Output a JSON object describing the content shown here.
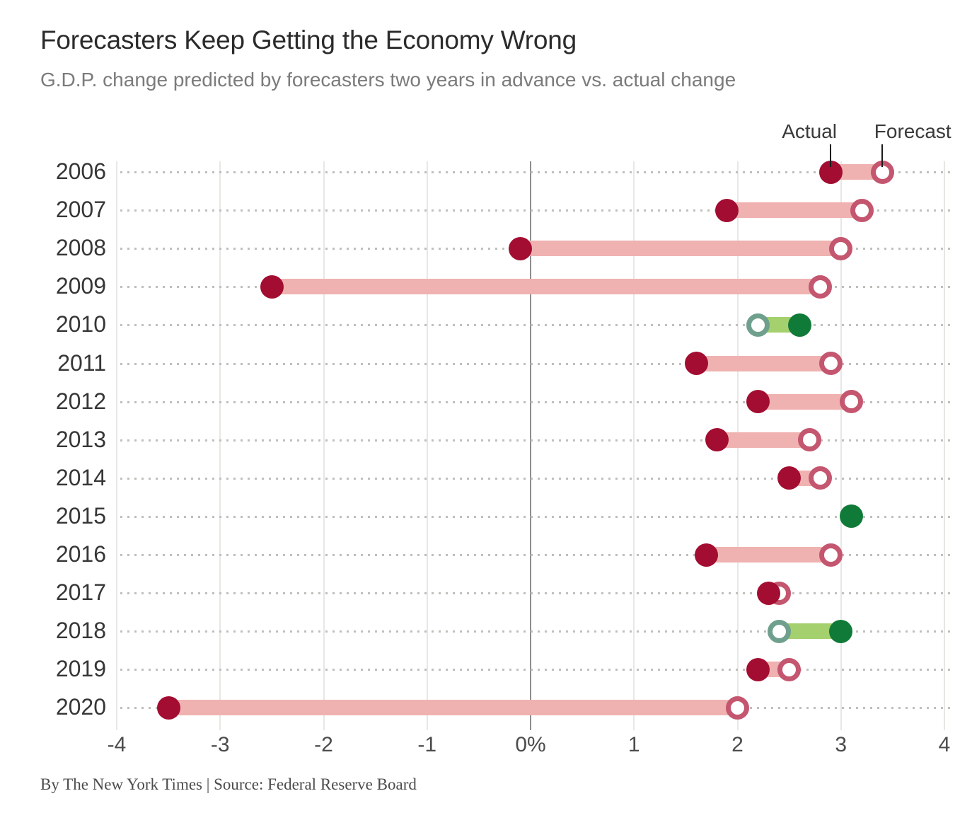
{
  "page": {
    "title": "Forecasters Keep Getting the Economy Wrong",
    "subtitle": "G.D.P. change predicted by forecasters two years in advance vs. actual change",
    "credit": "By The New York Times | Source: Federal Reserve Board"
  },
  "legend": {
    "actual_label": "Actual",
    "forecast_label": "Forecast"
  },
  "chart_data": {
    "type": "scatter",
    "variant": "dumbbell",
    "title": "Forecasters Keep Getting the Economy Wrong",
    "subtitle": "G.D.P. change predicted by forecasters two years in advance vs. actual change",
    "categories": [
      "2006",
      "2007",
      "2008",
      "2009",
      "2010",
      "2011",
      "2012",
      "2013",
      "2014",
      "2015",
      "2016",
      "2017",
      "2018",
      "2019",
      "2020"
    ],
    "series": [
      {
        "name": "Actual",
        "values": [
          2.9,
          1.9,
          -0.1,
          -2.5,
          2.6,
          1.6,
          2.2,
          1.8,
          2.5,
          3.1,
          1.7,
          2.3,
          3.0,
          2.2,
          -3.5
        ]
      },
      {
        "name": "Forecast",
        "values": [
          3.4,
          3.2,
          3.0,
          2.8,
          2.2,
          2.9,
          3.1,
          2.7,
          2.8,
          3.1,
          2.9,
          2.4,
          2.4,
          2.5,
          2.0
        ]
      }
    ],
    "xlim": [
      -4,
      4
    ],
    "x_ticks": [
      {
        "value": -4,
        "label": "-4"
      },
      {
        "value": -3,
        "label": "-3"
      },
      {
        "value": -2,
        "label": "-2"
      },
      {
        "value": -1,
        "label": "-1"
      },
      {
        "value": 0,
        "label": "0%"
      },
      {
        "value": 1,
        "label": "1"
      },
      {
        "value": 2,
        "label": "2"
      },
      {
        "value": 3,
        "label": "3"
      },
      {
        "value": 4,
        "label": "4"
      }
    ],
    "grid": "vertical",
    "legend_position": "top-right",
    "colors": {
      "actual_dot_overestimate": "#a20d31",
      "forecast_ring_overestimate": "#c4566f",
      "bar_overestimate": "#efb2b0",
      "actual_dot_underestimate": "#107a38",
      "forecast_ring_underestimate": "#6fa08d",
      "bar_underestimate": "#a4d06e",
      "zero_line": "#8d8d8d",
      "gridline": "#e7e7e4"
    }
  }
}
